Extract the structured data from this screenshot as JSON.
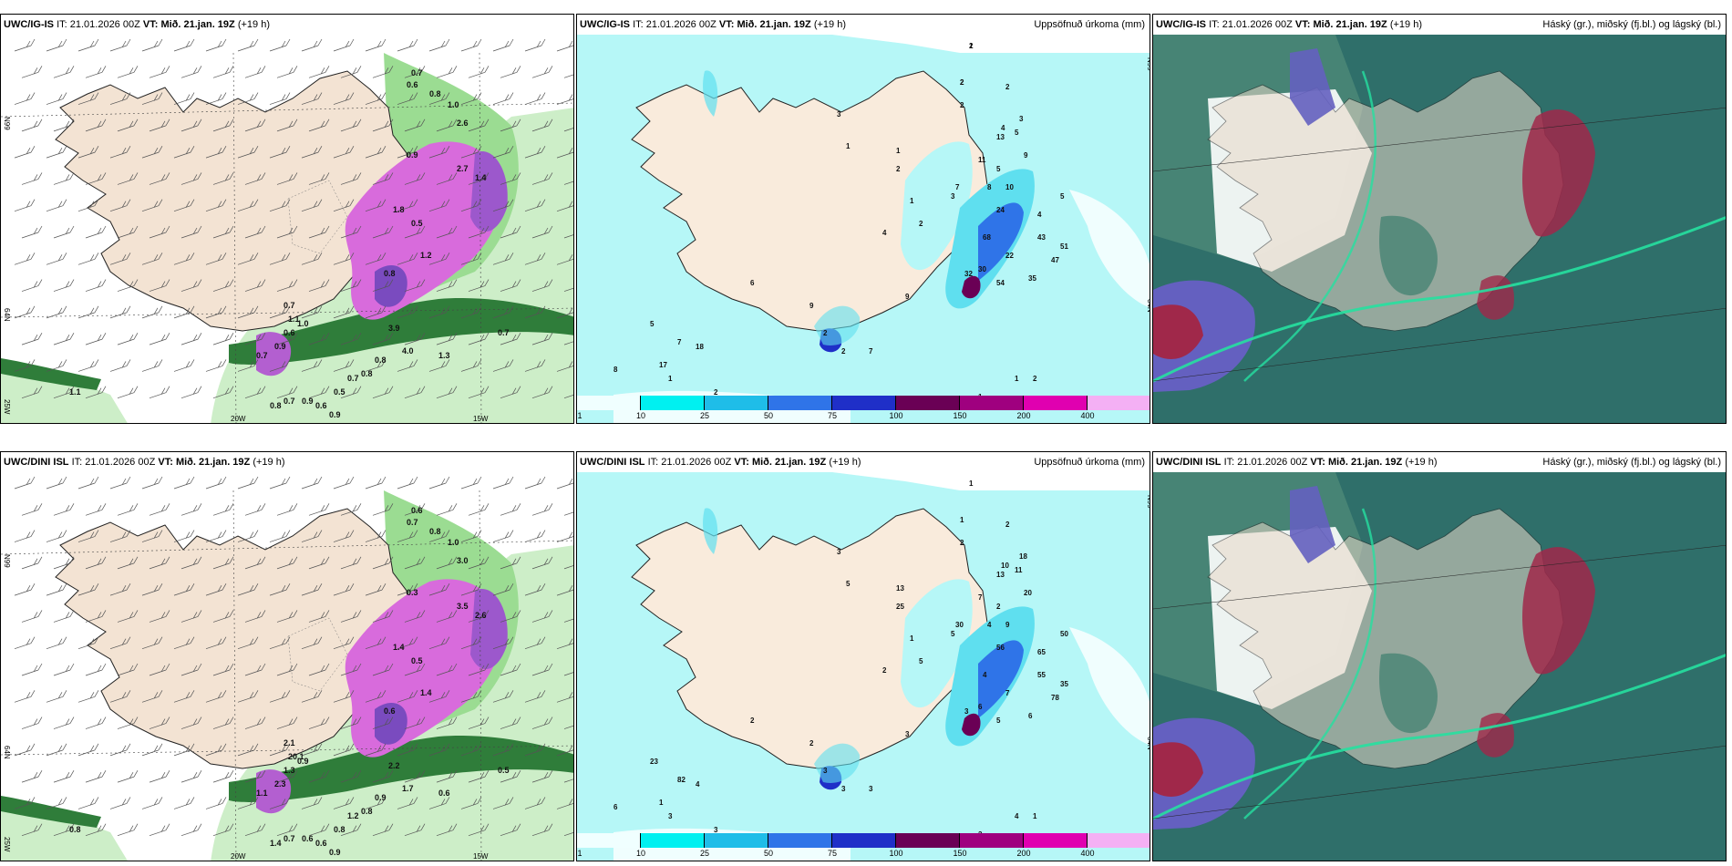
{
  "colorbar": {
    "ticks": [
      "1",
      "10",
      "25",
      "50",
      "75",
      "100",
      "150",
      "200",
      "400"
    ],
    "colors": [
      "#f0ffff",
      "#00f0f0",
      "#1fbde8",
      "#2f74e8",
      "#1f2fc8",
      "#6a0055",
      "#9f007f",
      "#e000b0",
      "#f4b0f4"
    ]
  },
  "panels": [
    {
      "id": "p1",
      "model": "UWC/IG-IS",
      "it_label": "IT:",
      "it": "21.01.2026 00Z",
      "vt_label": "VT:",
      "vt": "Mið. 21.jan. 19Z",
      "lead": "(+19 h)",
      "right": "",
      "type": "wind-precip",
      "axis": {
        "lat_top": "N99",
        "lat_mid": "64N",
        "lat_bot": "25W",
        "lon_left": "20W",
        "lon_right": "15W"
      },
      "labels": [
        "0.7",
        "0.6",
        "0.8",
        "1.0",
        "0.9",
        "2.6",
        "1.8",
        "0.5",
        "3.9",
        "1.2",
        "0.8",
        "2.7",
        "1.4",
        "0.7",
        "1.1",
        "0.6",
        "0.9",
        "0.7",
        "1.0",
        "4.0",
        "0.8",
        "1.3",
        "0.7",
        "0.8",
        "0.7",
        "0.5",
        "0.9",
        "0.6",
        "1.1",
        "0.7",
        "0.8",
        "0.9"
      ]
    },
    {
      "id": "p2",
      "model": "UWC/IG-IS",
      "it_label": "IT:",
      "it": "21.01.2026 00Z",
      "vt_label": "VT:",
      "vt": "Mið. 21.jan. 19Z",
      "lead": "(+19 h)",
      "right": "Uppsöfnuð úrkoma (mm)",
      "type": "accum",
      "axis": {
        "lat_top": "N99",
        "lat_mid": "64N"
      },
      "labels": [
        "1",
        "2",
        "2",
        "2",
        "3",
        "1",
        "1",
        "2",
        "1",
        "3",
        "2",
        "4",
        "5",
        "11",
        "5",
        "8",
        "4",
        "3",
        "13",
        "9",
        "7",
        "10",
        "24",
        "5",
        "4",
        "43",
        "51",
        "47",
        "35",
        "68",
        "22",
        "30",
        "54",
        "32",
        "9",
        "7",
        "2",
        "2",
        "9",
        "6",
        "5",
        "7",
        "17",
        "18",
        "8",
        "1",
        "2",
        "2",
        "3",
        "5",
        "1",
        "1",
        "2",
        "2",
        "2"
      ]
    },
    {
      "id": "p3",
      "model": "UWC/IG-IS",
      "it_label": "IT:",
      "it": "21.01.2026 00Z",
      "vt_label": "VT:",
      "vt": "Mið. 21.jan. 19Z",
      "lead": "(+19 h)",
      "right": "Háský (gr.), miðský (fj.bl.) og lágský (bl.)",
      "type": "clouds"
    },
    {
      "id": "p4",
      "model": "UWC/DINI ISL",
      "it_label": "IT:",
      "it": "21.01.2026 00Z",
      "vt_label": "VT:",
      "vt": "Mið. 21.jan. 19Z",
      "lead": "(+19 h)",
      "right": "",
      "type": "wind-precip",
      "axis": {
        "lat_top": "N99",
        "lat_mid": "64N",
        "lat_bot": "25W",
        "lon_left": "20W",
        "lon_right": "15W"
      },
      "labels": [
        "0.6",
        "0.7",
        "0.8",
        "1.0",
        "0.3",
        "3.0",
        "1.4",
        "0.5",
        "2.2",
        "1.4",
        "0.6",
        "3.5",
        "2.6",
        "2.1",
        "20.1",
        "1.3",
        "2.3",
        "1.1",
        "0.9",
        "1.7",
        "0.9",
        "0.6",
        "0.5",
        "0.8",
        "1.2",
        "0.8",
        "0.6",
        "0.6",
        "0.8",
        "0.7",
        "1.4",
        "0.9"
      ]
    },
    {
      "id": "p5",
      "model": "UWC/DINI ISL",
      "it_label": "IT:",
      "it": "21.01.2026 00Z",
      "vt_label": "VT:",
      "vt": "Mið. 21.jan. 19Z",
      "lead": "(+19 h)",
      "right": "Uppsöfnuð úrkoma (mm)",
      "type": "accum",
      "axis": {
        "lat_top": "N99",
        "lat_mid": "64N"
      },
      "labels": [
        "1",
        "1",
        "2",
        "2",
        "3",
        "5",
        "13",
        "25",
        "1",
        "5",
        "5",
        "2",
        "2",
        "7",
        "11",
        "4",
        "10",
        "18",
        "13",
        "20",
        "30",
        "9",
        "56",
        "50",
        "65",
        "55",
        "35",
        "78",
        "6",
        "4",
        "7",
        "6",
        "5",
        "3",
        "3",
        "3",
        "3",
        "3",
        "2",
        "2",
        "23",
        "82",
        "1",
        "4",
        "6",
        "3",
        "3",
        "3",
        "5",
        "4",
        "3",
        "4",
        "1"
      ]
    },
    {
      "id": "p6",
      "model": "UWC/DINI ISL",
      "it_label": "IT:",
      "it": "21.01.2026 00Z",
      "vt_label": "VT:",
      "vt": "Mið. 21.jan. 19Z",
      "lead": "(+19 h)",
      "right": "Háský (gr.), miðský (fj.bl.) og lágský (bl.)",
      "type": "clouds"
    }
  ]
}
